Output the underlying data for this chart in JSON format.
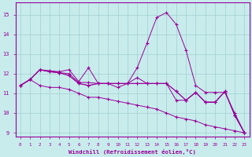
{
  "xlabel": "Windchill (Refroidissement éolien,°C)",
  "background_color": "#c8ecec",
  "grid_color": "#a8d4d4",
  "line_color": "#990099",
  "xlim": [
    -0.5,
    23.5
  ],
  "ylim": [
    8.8,
    15.6
  ],
  "yticks": [
    9,
    10,
    11,
    12,
    13,
    14,
    15
  ],
  "xticks": [
    0,
    1,
    2,
    3,
    4,
    5,
    6,
    7,
    8,
    9,
    10,
    11,
    12,
    13,
    14,
    15,
    16,
    17,
    18,
    19,
    20,
    21,
    22,
    23
  ],
  "series": [
    [
      11.4,
      11.7,
      12.2,
      12.15,
      12.1,
      12.2,
      11.6,
      12.3,
      11.5,
      11.5,
      11.3,
      11.5,
      12.3,
      13.55,
      14.85,
      15.1,
      14.5,
      13.2,
      11.4,
      11.05,
      11.05,
      11.05,
      10.0,
      9.0
    ],
    [
      11.4,
      11.7,
      12.2,
      12.1,
      12.05,
      12.0,
      11.55,
      11.55,
      11.5,
      11.5,
      11.5,
      11.5,
      11.8,
      11.5,
      11.5,
      11.5,
      11.1,
      10.65,
      11.05,
      10.55,
      10.55,
      11.1,
      9.9,
      9.0
    ],
    [
      11.4,
      11.7,
      12.2,
      12.1,
      12.05,
      11.9,
      11.5,
      11.4,
      11.5,
      11.5,
      11.5,
      11.5,
      11.5,
      11.5,
      11.5,
      11.5,
      11.1,
      10.65,
      11.05,
      10.55,
      10.55,
      11.1,
      9.9,
      9.0
    ],
    [
      11.4,
      11.7,
      12.2,
      12.1,
      12.05,
      11.9,
      11.5,
      11.4,
      11.5,
      11.5,
      11.5,
      11.5,
      11.5,
      11.5,
      11.5,
      11.5,
      10.65,
      10.65,
      11.05,
      10.55,
      10.55,
      11.1,
      9.9,
      9.0
    ],
    [
      11.4,
      11.7,
      11.4,
      11.3,
      11.3,
      11.2,
      11.0,
      10.8,
      10.8,
      10.7,
      10.6,
      10.5,
      10.4,
      10.3,
      10.2,
      10.0,
      9.8,
      9.7,
      9.6,
      9.4,
      9.3,
      9.2,
      9.1,
      9.0
    ]
  ]
}
